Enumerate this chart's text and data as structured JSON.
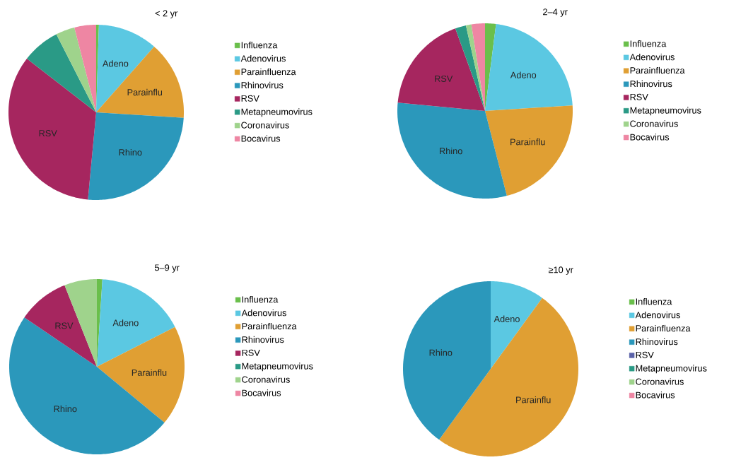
{
  "chart_data": [
    {
      "type": "pie",
      "title": "< 2 yr",
      "legend": "right",
      "categories": [
        "Influenza",
        "Adenovirus",
        "Parainfluenza",
        "Rhinovirus",
        "RSV",
        "Metapneumovirus",
        "Coronavirus",
        "Bocavirus"
      ],
      "values": [
        0.5,
        11,
        14.5,
        25.5,
        34,
        7,
        3.5,
        4
      ],
      "colors": [
        "#6abf4b",
        "#5bc8e2",
        "#e09f33",
        "#2b98bb",
        "#a6265f",
        "#2a9a86",
        "#9fd38c",
        "#ee86a3"
      ],
      "value_labels": [
        null,
        "Adeno",
        "Parainflu",
        "Rhino",
        "RSV",
        null,
        null,
        null
      ]
    },
    {
      "type": "pie",
      "title": "2–4 yr",
      "legend": "right",
      "categories": [
        "Influenza",
        "Adenovirus",
        "Parainfluenza",
        "Rhinovirus",
        "RSV",
        "Metapneumovirus",
        "Coronavirus",
        "Bocavirus"
      ],
      "values": [
        2,
        22,
        22,
        30.5,
        18,
        2,
        1,
        2.5
      ],
      "colors": [
        "#6abf4b",
        "#5bc8e2",
        "#e09f33",
        "#2b98bb",
        "#a6265f",
        "#2a9a86",
        "#9fd38c",
        "#ee86a3"
      ],
      "value_labels": [
        null,
        "Adeno",
        "Parainflu",
        "Rhino",
        "RSV",
        null,
        null,
        null
      ]
    },
    {
      "type": "pie",
      "title": "5–9 yr",
      "legend": "right",
      "categories": [
        "Influenza",
        "Adenovirus",
        "Parainfluenza",
        "Rhinovirus",
        "RSV",
        "Metapneumovirus",
        "Coronavirus",
        "Bocavirus"
      ],
      "values": [
        1,
        16.5,
        18.5,
        48.5,
        9.5,
        0,
        6,
        0
      ],
      "colors": [
        "#6abf4b",
        "#5bc8e2",
        "#e09f33",
        "#2b98bb",
        "#a6265f",
        "#2a9a86",
        "#9fd38c",
        "#ee86a3"
      ],
      "value_labels": [
        null,
        "Adeno",
        "Parainflu",
        "Rhino",
        "RSV",
        null,
        null,
        null
      ]
    },
    {
      "type": "pie",
      "title": "≥10 yr",
      "legend": "right",
      "categories": [
        "Influenza",
        "Adenovirus",
        "Parainfluenza",
        "Rhinovirus",
        "RSV",
        "Metapneumovirus",
        "Coronavirus",
        "Bocavirus"
      ],
      "values": [
        0,
        10,
        50,
        40,
        0,
        0,
        0,
        0
      ],
      "colors": [
        "#6abf4b",
        "#5bc8e2",
        "#e09f33",
        "#2b98bb",
        "#5a62a8",
        "#2a9a86",
        "#9fd38c",
        "#ee86a3"
      ],
      "value_labels": [
        null,
        "Adeno",
        "Parainflu",
        "Rhino",
        null,
        null,
        null,
        null
      ]
    }
  ]
}
